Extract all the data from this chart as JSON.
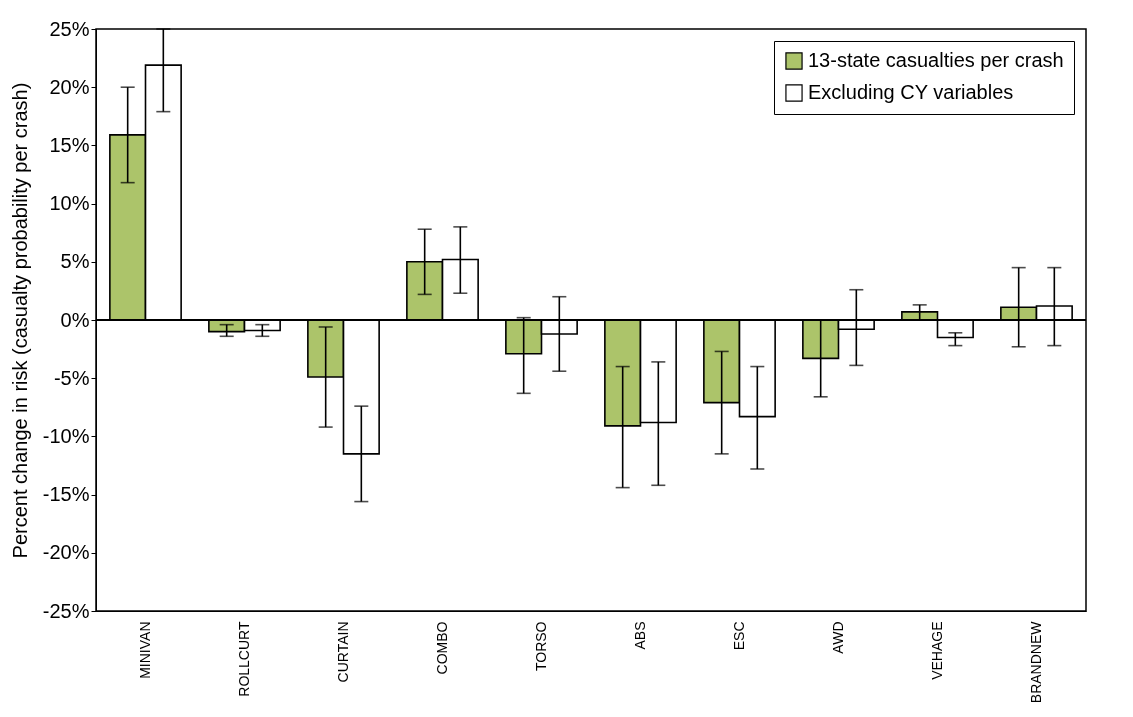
{
  "chart_data": {
    "type": "bar",
    "ylabel": "Percent change in risk (casualty probability per crash)",
    "categories": [
      "MINIVAN",
      "ROLLCURT",
      "CURTAIN",
      "COMBO",
      "TORSO",
      "ABS",
      "ESC",
      "AWD",
      "VEHAGE",
      "BRANDNEW"
    ],
    "series": [
      {
        "name": "13-state casualties per crash",
        "color": "#acc46a",
        "values": [
          15.9,
          -1.0,
          -4.9,
          5.0,
          -2.9,
          -9.1,
          -7.1,
          -3.3,
          0.7,
          1.1
        ],
        "errors": [
          [
            11.8,
            20.0
          ],
          [
            -1.4,
            -0.4
          ],
          [
            -9.2,
            -0.6
          ],
          [
            2.2,
            7.8
          ],
          [
            -6.3,
            0.2
          ],
          [
            -14.4,
            -4.0
          ],
          [
            -11.5,
            -2.7
          ],
          [
            -6.6,
            0.0
          ],
          [
            0.0,
            1.3
          ],
          [
            -2.3,
            4.5
          ]
        ]
      },
      {
        "name": "Excluding CY variables",
        "color": "#ffffff",
        "values": [
          21.9,
          -0.9,
          -11.5,
          5.2,
          -1.2,
          -8.8,
          -8.3,
          -0.8,
          -1.5,
          1.2
        ],
        "errors": [
          [
            17.9,
            25.0
          ],
          [
            -1.4,
            -0.4
          ],
          [
            -15.6,
            -7.4
          ],
          [
            2.3,
            8.0
          ],
          [
            -4.4,
            2.0
          ],
          [
            -14.2,
            -3.6
          ],
          [
            -12.8,
            -4.0
          ],
          [
            -3.9,
            2.6
          ],
          [
            -2.2,
            -1.1
          ],
          [
            -2.2,
            4.5
          ]
        ]
      }
    ],
    "ylim": [
      -25,
      25
    ],
    "yticks": [
      {
        "value": -25,
        "label": "-25%"
      },
      {
        "value": -20,
        "label": "-20%"
      },
      {
        "value": -15,
        "label": "-15%"
      },
      {
        "value": -10,
        "label": "-10%"
      },
      {
        "value": -5,
        "label": "-5%"
      },
      {
        "value": 0,
        "label": "0%"
      },
      {
        "value": 5,
        "label": "5%"
      },
      {
        "value": 10,
        "label": "10%"
      },
      {
        "value": 15,
        "label": "15%"
      },
      {
        "value": 20,
        "label": "20%"
      },
      {
        "value": 25,
        "label": "25%"
      }
    ],
    "legend": "top right"
  }
}
